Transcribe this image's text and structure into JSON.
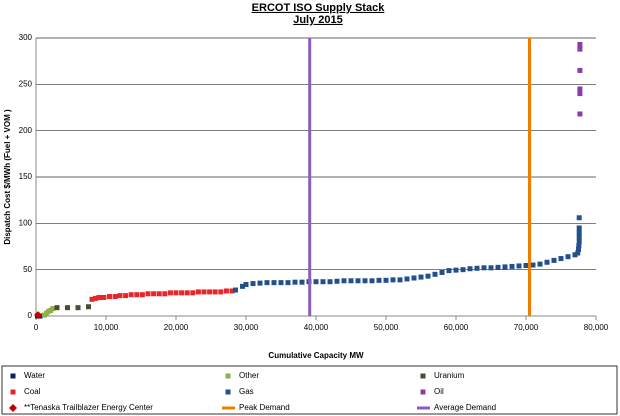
{
  "chart_data": {
    "type": "scatter",
    "title": "ERCOT ISO Supply Stack",
    "subtitle": "July 2015",
    "x_label": "Cumulative Capacity MW",
    "y_label": "Dispatch Cost $/MWh (Fuel + VOM )",
    "xlim": [
      0,
      80000
    ],
    "xticks": [
      0,
      {
        "value": 10000,
        "label": "10,000"
      },
      {
        "value": 20000,
        "label": "20,000"
      },
      {
        "value": 30000,
        "label": "30,000"
      },
      {
        "value": 40000,
        "label": "40,000"
      },
      {
        "value": 50000,
        "label": "50,000"
      },
      {
        "value": 60000,
        "label": "60,000"
      },
      {
        "value": 70000,
        "label": "70,000"
      },
      {
        "value": 80000,
        "label": "80,000"
      }
    ],
    "ylim": [
      0,
      300
    ],
    "yticks": [
      0,
      50,
      100,
      150,
      200,
      250,
      300
    ],
    "grid": true,
    "legend": "bottom",
    "series": [
      {
        "name": "Water",
        "color": "#0d1f5e",
        "marker": "square",
        "x": [
          200,
          400,
          600
        ],
        "values": [
          0,
          0,
          0
        ]
      },
      {
        "name": "Other",
        "color": "#8cb04a",
        "marker": "square",
        "x": [
          1200,
          1500,
          1800,
          2100,
          2400
        ],
        "values": [
          1,
          3,
          5,
          6,
          8
        ]
      },
      {
        "name": "Uranium",
        "color": "#4d4a36",
        "marker": "square",
        "x": [
          3000,
          4500,
          6000,
          7500
        ],
        "values": [
          9,
          9,
          9,
          10
        ]
      },
      {
        "name": "Coal",
        "color": "#e8262a",
        "marker": "square",
        "x": [
          8000,
          8500,
          9000,
          9700,
          10500,
          11300,
          12000,
          12800,
          13600,
          14400,
          15200,
          16000,
          16800,
          17600,
          18400,
          19200,
          20000,
          20800,
          21600,
          22400,
          23200,
          24000,
          24800,
          25600,
          26400,
          27200,
          28000
        ],
        "values": [
          18,
          19,
          20,
          20,
          21,
          21,
          22,
          22,
          23,
          23,
          23,
          24,
          24,
          24,
          24,
          25,
          25,
          25,
          25,
          25,
          26,
          26,
          26,
          26,
          26,
          27,
          27
        ]
      },
      {
        "name": "Gas",
        "color": "#24508a",
        "marker": "square",
        "x": [
          28500,
          29500,
          30000,
          31000,
          32000,
          33000,
          34000,
          35000,
          36000,
          37000,
          38000,
          39000,
          40000,
          41000,
          42000,
          43000,
          44000,
          45000,
          46000,
          47000,
          48000,
          49000,
          50000,
          51000,
          52000,
          53000,
          54000,
          55000,
          56000,
          57000,
          58000,
          59000,
          60000,
          61000,
          62000,
          63000,
          64000,
          65000,
          66000,
          67000,
          68000,
          69000,
          70000,
          71000,
          72000,
          73000,
          74000,
          75000,
          76000,
          77000,
          77400,
          77500,
          77550,
          77600,
          77600,
          77600,
          77600,
          77600
        ],
        "values": [
          28,
          32,
          34,
          35,
          35.5,
          36,
          36,
          36,
          36,
          36.5,
          36.5,
          37,
          37,
          37,
          37,
          37.5,
          38,
          38,
          38,
          38,
          38,
          38.5,
          38.5,
          39,
          39,
          40,
          41,
          42,
          43,
          45,
          47,
          49,
          49.5,
          50,
          51,
          51.5,
          52,
          52,
          52.5,
          53,
          53.5,
          54,
          54.5,
          55,
          56,
          58,
          60,
          62,
          64,
          66,
          68,
          72,
          76,
          80,
          85,
          90,
          95,
          106
        ]
      },
      {
        "name": "Oil",
        "color": "#8a3ca8",
        "marker": "square",
        "x": [
          77700,
          77700,
          77700,
          77700,
          77700,
          77700
        ],
        "values": [
          218,
          240,
          245,
          265,
          288,
          293
        ]
      },
      {
        "name": "**Tenaska Trailblazer Energy Center",
        "color": "#c00000",
        "marker": "diamond",
        "x": [
          300
        ],
        "values": [
          1
        ]
      },
      {
        "name": "Peak Demand",
        "color": "#f07d00",
        "style": "vline",
        "x": [
          70500
        ]
      },
      {
        "name": "Average Demand",
        "color": "#8c5cbf",
        "style": "vline",
        "x": [
          39100
        ]
      }
    ]
  }
}
